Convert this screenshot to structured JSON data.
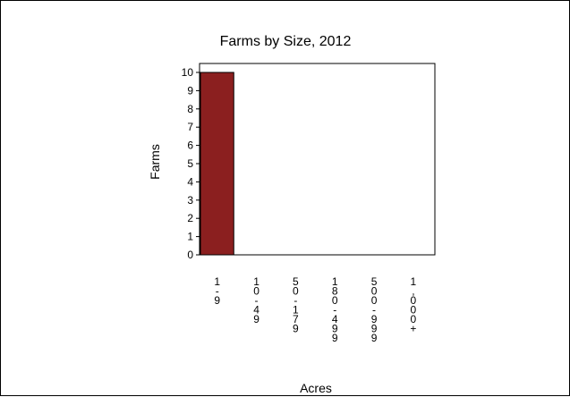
{
  "chart_data": {
    "type": "bar",
    "title": "Farms by Size, 2012",
    "xlabel": "Acres",
    "ylabel": "Farms",
    "categories": [
      "1-9",
      "10-49",
      "50-179",
      "180-499",
      "500-999",
      "1,000+"
    ],
    "values": [
      10,
      0,
      0,
      0,
      0,
      0
    ],
    "ylim": [
      0,
      10
    ],
    "yticks": [
      0,
      1,
      2,
      3,
      4,
      5,
      6,
      7,
      8,
      9,
      10
    ],
    "bar_color": "#8B1F1F",
    "grid": false,
    "legend": "none"
  }
}
